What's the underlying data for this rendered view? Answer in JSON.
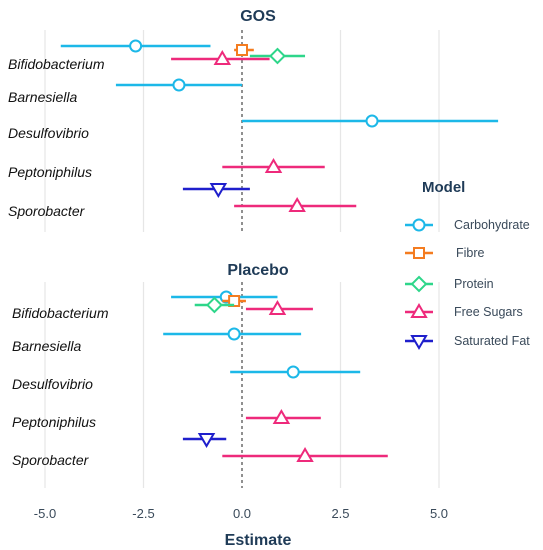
{
  "chart_data": {
    "type": "scatter",
    "x_label": "Estimate",
    "x_ticks": [
      "-5.0",
      "-2.5",
      "0.0",
      "2.5",
      "5.0"
    ],
    "x_range": [
      -6.2,
      6.6
    ],
    "legend": {
      "title": "Model",
      "placement": "right",
      "entries": [
        {
          "name": "Carbohydrate",
          "color": "#1cb8e8",
          "marker": "circle"
        },
        {
          "name": "Fibre",
          "color": "#f47c20",
          "marker": "square"
        },
        {
          "name": "Protein",
          "color": "#2ed68a",
          "marker": "diamond"
        },
        {
          "name": "Free Sugars",
          "color": "#ee2a7b",
          "marker": "triangle-up"
        },
        {
          "name": "Saturated Fat",
          "color": "#1f1fcc",
          "marker": "triangle-down"
        }
      ]
    },
    "panels": [
      {
        "title": "GOS",
        "categories": [
          "Bifidobacterium",
          "Barnesiella",
          "Desulfovibrio",
          "Peptoniphilus",
          "Sporobacter"
        ],
        "points": [
          {
            "category": "Bifidobacterium",
            "series": "Carbohydrate",
            "estimate": -2.7,
            "low": -4.6,
            "high": -0.8
          },
          {
            "category": "Bifidobacterium",
            "series": "Fibre",
            "estimate": 0.0,
            "low": -0.2,
            "high": 0.3
          },
          {
            "category": "Bifidobacterium",
            "series": "Protein",
            "estimate": 0.9,
            "low": 0.2,
            "high": 1.6
          },
          {
            "category": "Bifidobacterium",
            "series": "Free Sugars",
            "estimate": -0.5,
            "low": -1.8,
            "high": 0.7
          },
          {
            "category": "Barnesiella",
            "series": "Carbohydrate",
            "estimate": -1.6,
            "low": -3.2,
            "high": 0.0
          },
          {
            "category": "Desulfovibrio",
            "series": "Carbohydrate",
            "estimate": 3.3,
            "low": 0.0,
            "high": 6.5
          },
          {
            "category": "Peptoniphilus",
            "series": "Free Sugars",
            "estimate": 0.8,
            "low": -0.5,
            "high": 2.1
          },
          {
            "category": "Peptoniphilus",
            "series": "Saturated Fat",
            "estimate": -0.6,
            "low": -1.5,
            "high": 0.2
          },
          {
            "category": "Sporobacter",
            "series": "Free Sugars",
            "estimate": 1.4,
            "low": -0.2,
            "high": 2.9
          }
        ]
      },
      {
        "title": "Placebo",
        "categories": [
          "Bifidobacterium",
          "Barnesiella",
          "Desulfovibrio",
          "Peptoniphilus",
          "Sporobacter"
        ],
        "points": [
          {
            "category": "Bifidobacterium",
            "series": "Carbohydrate",
            "estimate": -0.4,
            "low": -1.8,
            "high": 0.9
          },
          {
            "category": "Bifidobacterium",
            "series": "Fibre",
            "estimate": -0.2,
            "low": -0.5,
            "high": 0.1
          },
          {
            "category": "Bifidobacterium",
            "series": "Protein",
            "estimate": -0.7,
            "low": -1.2,
            "high": -0.2
          },
          {
            "category": "Bifidobacterium",
            "series": "Free Sugars",
            "estimate": 0.9,
            "low": 0.1,
            "high": 1.8
          },
          {
            "category": "Barnesiella",
            "series": "Carbohydrate",
            "estimate": -0.2,
            "low": -2.0,
            "high": 1.5
          },
          {
            "category": "Desulfovibrio",
            "series": "Carbohydrate",
            "estimate": 1.3,
            "low": -0.3,
            "high": 3.0
          },
          {
            "category": "Peptoniphilus",
            "series": "Free Sugars",
            "estimate": 1.0,
            "low": 0.1,
            "high": 2.0
          },
          {
            "category": "Peptoniphilus",
            "series": "Saturated Fat",
            "estimate": -0.9,
            "low": -1.5,
            "high": -0.4
          },
          {
            "category": "Sporobacter",
            "series": "Free Sugars",
            "estimate": 1.6,
            "low": -0.5,
            "high": 3.7
          }
        ]
      }
    ]
  }
}
